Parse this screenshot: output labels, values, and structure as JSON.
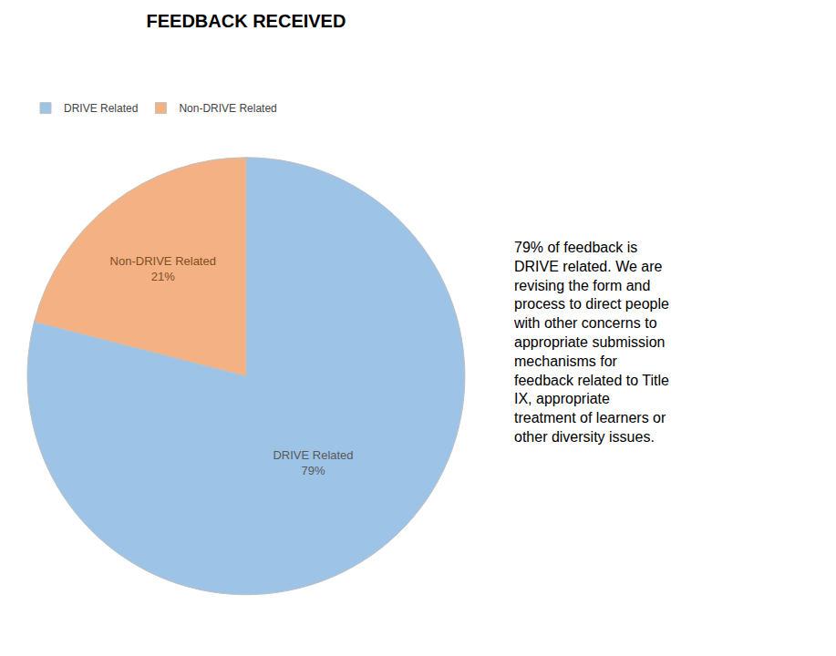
{
  "chart_data": {
    "type": "pie",
    "title": "FEEDBACK RECEIVED",
    "categories": [
      "DRIVE Related",
      "Non-DRIVE Related"
    ],
    "values": [
      79,
      21
    ],
    "value_labels": [
      "DRIVE Related\n79%",
      "Non-DRIVE Related\n21%"
    ],
    "data_labels": true,
    "colors": [
      "#9DC3E6",
      "#F4B183"
    ],
    "legend": "upper left",
    "annotations": [
      "79% of feedback is\nDRIVE related. We are\nrevising the form and\nprocess to direct people\nwith other concerns to\nappropriate submission\nmechanisms for\nfeedback related to Title\nIX, appropriate\ntreatment of learners or\nother diversity issues."
    ]
  }
}
